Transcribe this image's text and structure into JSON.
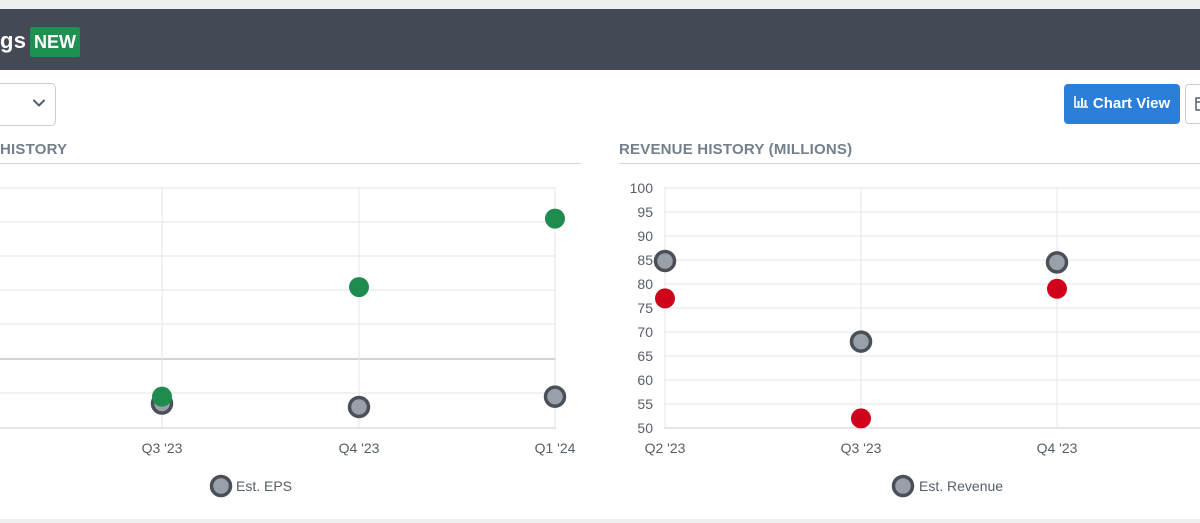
{
  "header": {
    "title": "gs",
    "badge": "NEW"
  },
  "toolbar": {
    "chart_view_label": "Chart View"
  },
  "colors": {
    "header_bg": "#444a55",
    "badge": "#1e9150",
    "primary_button": "#2b7fd8",
    "beat": "#1e8c4e",
    "miss": "#d0021b",
    "estimate": "#9aa0a8"
  },
  "icons": {
    "select": "chevron-down-icon",
    "chart_view": "bar-chart-icon",
    "table_view": "table-icon"
  },
  "eps_chart": {
    "title": "HISTORY",
    "legend": "Est. EPS"
  },
  "revenue_chart": {
    "title": "REVENUE HISTORY (MILLIONS)",
    "legend": "Est. Revenue"
  },
  "chart_data": [
    {
      "type": "scatter",
      "title": "HISTORY",
      "categories": [
        "Q3 '23",
        "Q4 '23",
        "Q1 '24"
      ],
      "series": [
        {
          "name": "Est. EPS",
          "values": [
            -0.13,
            -0.14,
            -0.11
          ],
          "color": "#9aa0a8"
        },
        {
          "values": [
            -0.11,
            0.21,
            0.41
          ],
          "color": "#1e8c4e"
        }
      ],
      "grid": true,
      "legend": "bottom"
    },
    {
      "type": "scatter",
      "title": "REVENUE HISTORY (MILLIONS)",
      "categories": [
        "Q2 '23",
        "Q3 '23",
        "Q4 '23"
      ],
      "yticks": [
        50,
        55,
        60,
        65,
        70,
        75,
        80,
        85,
        90,
        95,
        100
      ],
      "ylim": [
        50,
        100
      ],
      "series": [
        {
          "name": "Est. Revenue",
          "values": [
            84.8,
            68,
            84.5
          ],
          "color": "#9aa0a8"
        },
        {
          "values": [
            77,
            52,
            79
          ],
          "colors": [
            "#d0021b",
            "#d0021b",
            "#d0021b"
          ]
        }
      ],
      "grid": true,
      "legend": "bottom"
    }
  ]
}
